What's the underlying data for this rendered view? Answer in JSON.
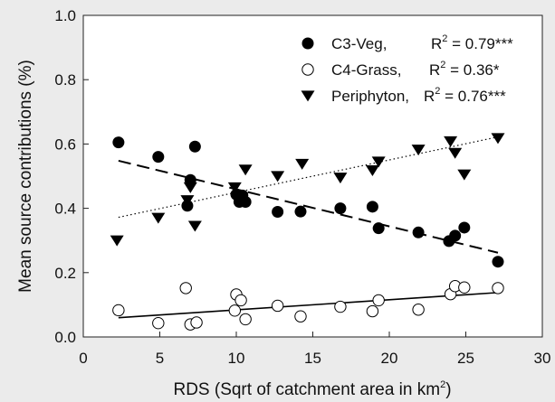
{
  "chart_data": {
    "type": "scatter",
    "xlabel": "RDS (Sqrt of catchment area in km",
    "xlabel_sup": "2",
    "xlabel_close": ")",
    "ylabel": "Mean source contributions (%)",
    "xlim": [
      0,
      30
    ],
    "ylim": [
      0.0,
      1.0
    ],
    "x_ticks": [
      0,
      5,
      10,
      15,
      20,
      25,
      30
    ],
    "y_ticks": [
      0.0,
      0.2,
      0.4,
      0.6,
      0.8,
      1.0
    ],
    "x_tick_labels": [
      "0",
      "5",
      "10",
      "15",
      "20",
      "25",
      "30"
    ],
    "y_tick_labels": [
      "0.0",
      "0.2",
      "0.4",
      "0.6",
      "0.8",
      "1.0"
    ],
    "grid": false,
    "legend_position": "top-right",
    "series": [
      {
        "name": "C3-Veg,",
        "r2_label": "R",
        "r2_sup": "2",
        "r2_value": " = 0.79***",
        "marker": "filled-circle",
        "color": "#000000",
        "x": [
          2.3,
          4.9,
          6.8,
          7.0,
          7.3,
          10.0,
          10.2,
          10.4,
          10.6,
          12.7,
          14.2,
          16.8,
          18.9,
          19.3,
          21.9,
          23.9,
          24.3,
          24.9,
          27.1
        ],
        "y": [
          0.605,
          0.56,
          0.408,
          0.488,
          0.592,
          0.443,
          0.42,
          0.44,
          0.42,
          0.389,
          0.39,
          0.4,
          0.405,
          0.338,
          0.325,
          0.298,
          0.315,
          0.34,
          0.234
        ],
        "fit": {
          "x": [
            2.3,
            27.1
          ],
          "y": [
            0.548,
            0.262
          ],
          "style": "dashed"
        }
      },
      {
        "name": "C4-Grass,",
        "r2_label": "R",
        "r2_sup": "2",
        "r2_value": " = 0.36*",
        "marker": "open-circle",
        "color": "#000000",
        "x": [
          2.3,
          4.9,
          6.7,
          7.0,
          7.4,
          9.9,
          10.0,
          10.3,
          10.6,
          12.7,
          14.2,
          16.8,
          18.9,
          19.3,
          21.9,
          24.0,
          24.3,
          24.9,
          27.1
        ],
        "y": [
          0.083,
          0.043,
          0.152,
          0.039,
          0.045,
          0.082,
          0.132,
          0.114,
          0.055,
          0.097,
          0.064,
          0.094,
          0.08,
          0.114,
          0.085,
          0.133,
          0.158,
          0.154,
          0.152
        ],
        "fit": {
          "x": [
            2.3,
            27.1
          ],
          "y": [
            0.06,
            0.138
          ],
          "style": "solid"
        }
      },
      {
        "name": "Periphyton,",
        "r2_label": "R",
        "r2_sup": "2",
        "r2_value": " = 0.76***",
        "marker": "filled-triangle-down",
        "color": "#000000",
        "x": [
          2.2,
          4.9,
          6.8,
          7.0,
          7.3,
          9.9,
          10.6,
          12.7,
          14.3,
          16.8,
          18.9,
          19.3,
          21.9,
          24.0,
          24.3,
          24.9,
          27.1
        ],
        "y": [
          0.3,
          0.37,
          0.425,
          0.465,
          0.345,
          0.465,
          0.52,
          0.5,
          0.538,
          0.495,
          0.518,
          0.545,
          0.582,
          0.608,
          0.572,
          0.505,
          0.618
        ],
        "fit": {
          "x": [
            2.3,
            27.1
          ],
          "y": [
            0.372,
            0.622
          ],
          "style": "dotted"
        }
      }
    ]
  }
}
